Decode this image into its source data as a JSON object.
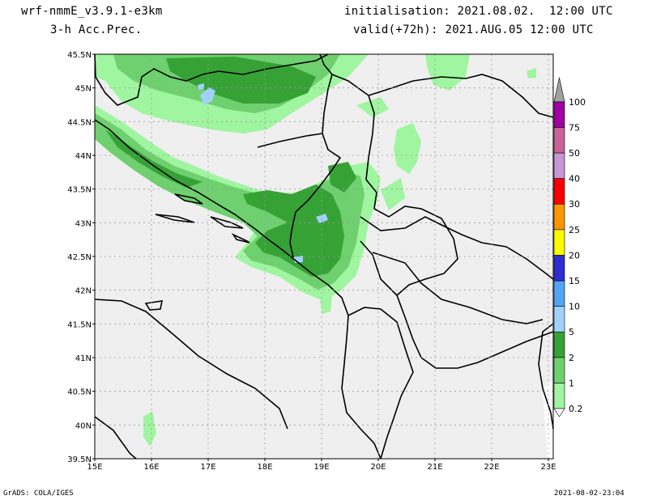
{
  "header": {
    "model": "wrf-nmmE_v3.9.1-e3km",
    "field": "3-h Acc.Prec.",
    "init": "initialisation: 2021.08.02.  12:00 UTC",
    "valid": "valid(+72h): 2021.AUG.05 12:00 UTC"
  },
  "axes": {
    "lat_labels": [
      "45.5N",
      "45N",
      "44.5N",
      "44N",
      "43.5N",
      "43N",
      "42.5N",
      "42N",
      "41.5N",
      "41N",
      "40.5N",
      "40N",
      "39.5N"
    ],
    "lon_labels": [
      "15E",
      "16E",
      "17E",
      "18E",
      "19E",
      "20E",
      "21E",
      "22E",
      "23E"
    ]
  },
  "legend": {
    "items": [
      {
        "label": "0.2",
        "color": "#a0f5a0"
      },
      {
        "label": "1",
        "color": "#6ed06e"
      },
      {
        "label": "2",
        "color": "#36a236"
      },
      {
        "label": "5",
        "color": "#a0d2fa"
      },
      {
        "label": "10",
        "color": "#50a5f5"
      },
      {
        "label": "15",
        "color": "#2d2dd2"
      },
      {
        "label": "20",
        "color": "#fafa00"
      },
      {
        "label": "25",
        "color": "#fa9600"
      },
      {
        "label": "30",
        "color": "#fa0000"
      },
      {
        "label": "40",
        "color": "#c896d2"
      },
      {
        "label": "50",
        "color": "#c86496"
      },
      {
        "label": "75",
        "color": "#a000a0"
      },
      {
        "label": "100",
        "color": "#a0a0a0"
      }
    ]
  },
  "footer": {
    "left": "GrADS: COLA/IGES",
    "right": "2021-08-02-23:04"
  },
  "colors": {
    "land": "#efefef",
    "light_green": "#a0f5a0",
    "mid_green": "#6ed06e",
    "dark_green": "#36a236",
    "light_blue": "#a0d2fa"
  }
}
